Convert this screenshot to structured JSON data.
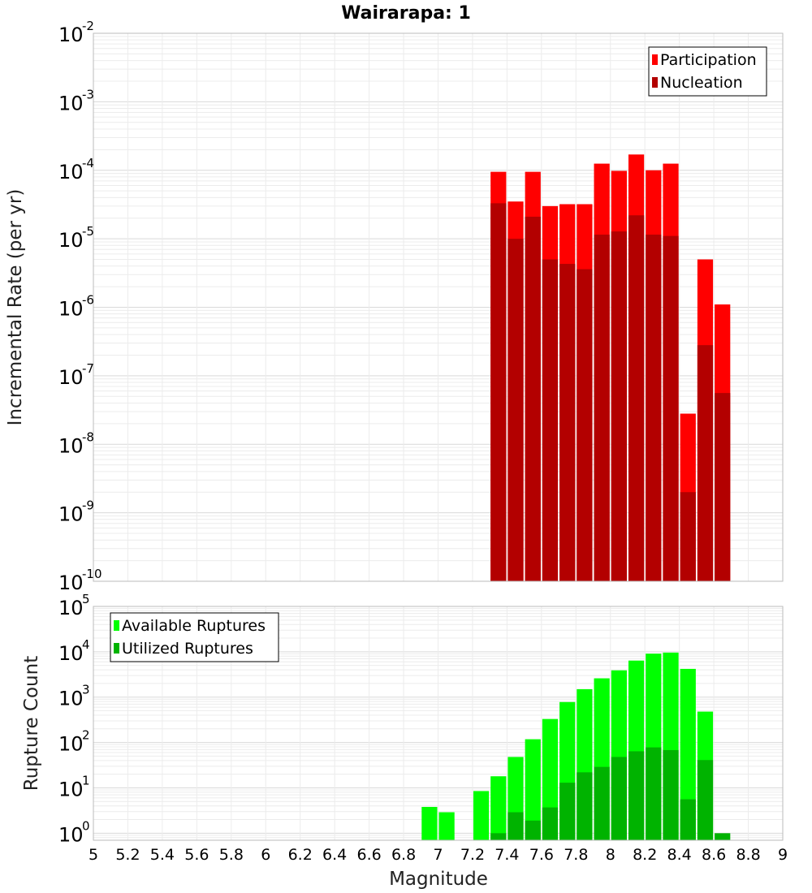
{
  "chart_data": [
    {
      "type": "bar",
      "title": "Wairarapa: 1",
      "ylabel": "Incremental Rate (per yr)",
      "xlabel": "",
      "yscale": "log",
      "ylim": [
        1e-10,
        0.01
      ],
      "xlim": [
        5,
        9
      ],
      "grid": true,
      "legend_position": "top-right",
      "bar_width": 0.1,
      "series": [
        {
          "name": "Participation",
          "color": "#ff0000",
          "x": [
            7.35,
            7.45,
            7.55,
            7.65,
            7.75,
            7.85,
            7.95,
            8.05,
            8.15,
            8.25,
            8.35,
            8.45,
            8.55,
            8.65
          ],
          "values": [
            9.5e-05,
            3.5e-05,
            9.5e-05,
            3e-05,
            3.2e-05,
            3.2e-05,
            0.000125,
            9.8e-05,
            0.00017,
            0.0001,
            0.000125,
            2.8e-08,
            5e-06,
            1.1e-06
          ]
        },
        {
          "name": "Nucleation",
          "color": "#b30000",
          "x": [
            7.35,
            7.45,
            7.55,
            7.65,
            7.75,
            7.85,
            7.95,
            8.05,
            8.15,
            8.25,
            8.35,
            8.45,
            8.55,
            8.65
          ],
          "values": [
            3.3e-05,
            1e-05,
            2.1e-05,
            5e-06,
            4.3e-06,
            3.6e-06,
            1.15e-05,
            1.28e-05,
            2.2e-05,
            1.15e-05,
            1.1e-05,
            2e-09,
            2.8e-07,
            5.6e-08
          ]
        }
      ]
    },
    {
      "type": "bar",
      "title": "",
      "ylabel": "Rupture Count",
      "xlabel": "Magnitude",
      "yscale": "log",
      "ylim": [
        0.7,
        100000.0
      ],
      "xlim": [
        5,
        9
      ],
      "grid": true,
      "legend_position": "top-left",
      "bar_width": 0.1,
      "x_ticks": [
        "5",
        "5.2",
        "5.4",
        "5.6",
        "5.8",
        "6",
        "6.2",
        "6.4",
        "6.6",
        "6.8",
        "7",
        "7.2",
        "7.4",
        "7.6",
        "7.8",
        "8",
        "8.2",
        "8.4",
        "8.6",
        "8.8",
        "9"
      ],
      "series": [
        {
          "name": "Available Ruptures",
          "color": "#00ff00",
          "x": [
            6.95,
            7.05,
            7.25,
            7.35,
            7.45,
            7.55,
            7.65,
            7.75,
            7.85,
            7.95,
            8.05,
            8.15,
            8.25,
            8.35,
            8.45,
            8.55
          ],
          "values": [
            3.8,
            2.9,
            8.5,
            18,
            48,
            118,
            330,
            780,
            1500,
            2600,
            3900,
            6400,
            9100,
            9600,
            4200,
            480
          ]
        },
        {
          "name": "Utilized Ruptures",
          "color": "#00b300",
          "x": [
            7.35,
            7.45,
            7.55,
            7.65,
            7.75,
            7.85,
            7.95,
            8.05,
            8.15,
            8.25,
            8.35,
            8.45,
            8.55,
            8.65
          ],
          "values": [
            1,
            2.9,
            1.9,
            3.7,
            13,
            22,
            29,
            48,
            64,
            78,
            68,
            5.6,
            41,
            1
          ]
        }
      ]
    }
  ]
}
